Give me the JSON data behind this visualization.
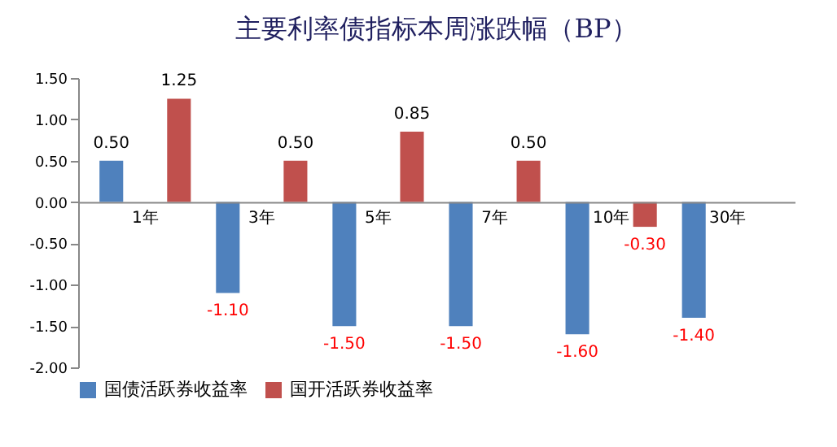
{
  "chart_data": {
    "type": "bar",
    "title": "主要利率债指标本周涨跌幅（BP）",
    "categories": [
      "1年",
      "3年",
      "5年",
      "7年",
      "10年",
      "30年"
    ],
    "series": [
      {
        "name": "国债活跃券收益率",
        "color": "#4f81bd",
        "values": [
          0.5,
          -1.1,
          -1.5,
          -1.5,
          -1.6,
          -1.4
        ],
        "value_labels": [
          "0.50",
          "-1.10",
          "-1.50",
          "-1.50",
          "-1.60",
          "-1.40"
        ]
      },
      {
        "name": "国开活跃券收益率",
        "color": "#c0504d",
        "values": [
          1.25,
          0.5,
          0.85,
          0.5,
          -0.3,
          null
        ],
        "value_labels": [
          "1.25",
          "0.50",
          "0.85",
          "0.50",
          "-0.30",
          null
        ]
      }
    ],
    "ylim": [
      -2.0,
      1.5
    ],
    "yticks": [
      {
        "value": 1.5,
        "label": "1.50"
      },
      {
        "value": 1.0,
        "label": "1.00"
      },
      {
        "value": 0.5,
        "label": "0.50"
      },
      {
        "value": 0,
        "label": "0.00"
      },
      {
        "value": -0.5,
        "label": "-0.50"
      },
      {
        "value": -1.0,
        "label": "-1.00"
      },
      {
        "value": -1.5,
        "label": "-1.50"
      },
      {
        "value": -2.0,
        "label": "-2.00"
      }
    ],
    "grid": false,
    "legend": "bottom"
  }
}
